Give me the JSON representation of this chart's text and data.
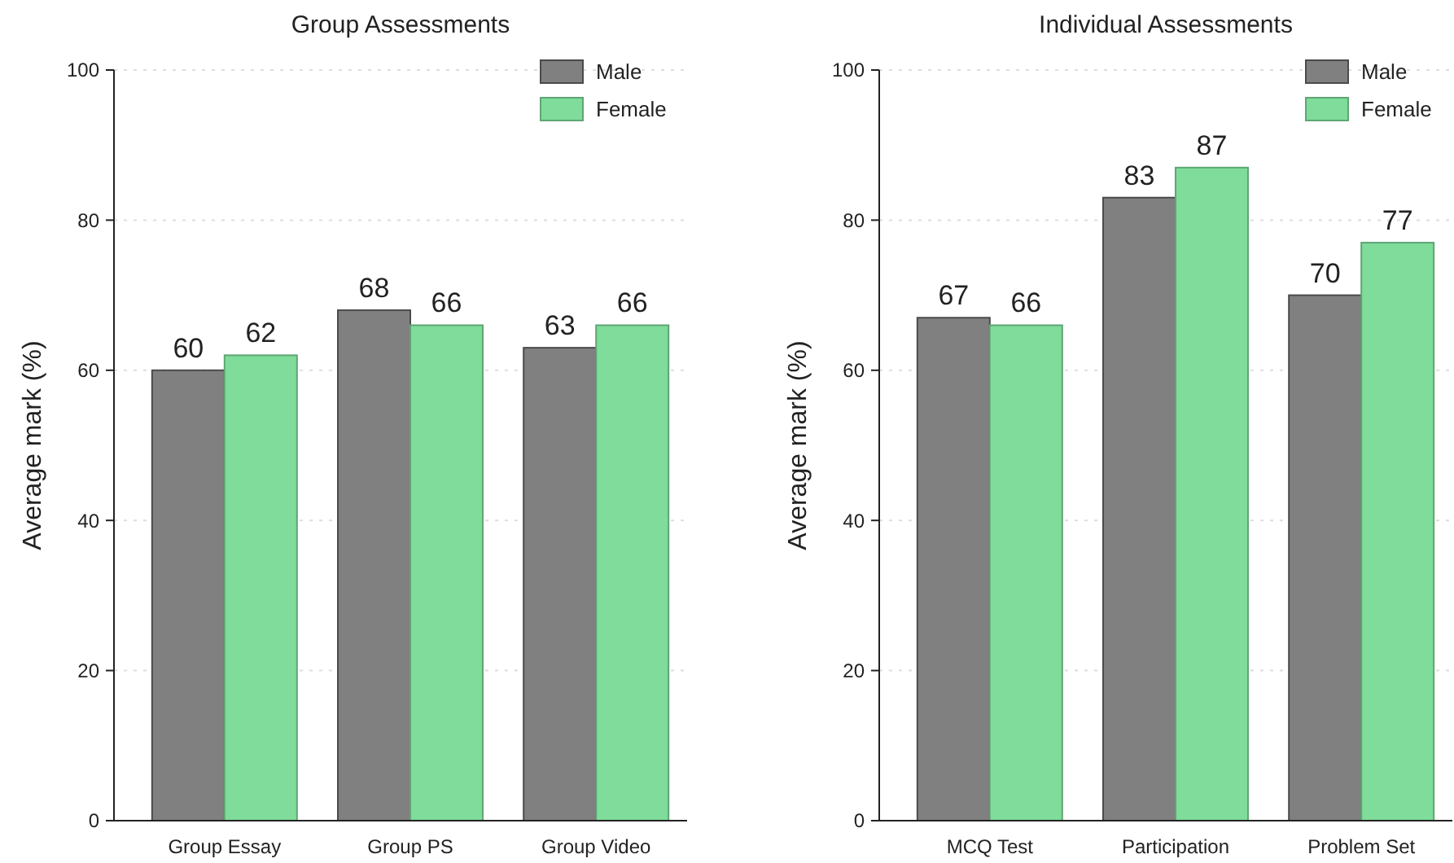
{
  "chart_data": [
    {
      "type": "bar",
      "title": "Group Assessments",
      "ylabel": "Average mark (%)",
      "categories": [
        "Group Essay",
        "Group PS",
        "Group Video"
      ],
      "series": [
        {
          "name": "Male",
          "color": "#808080",
          "values": [
            60,
            68,
            63
          ]
        },
        {
          "name": "Female",
          "color": "#7fdc9a",
          "values": [
            62,
            66,
            66
          ]
        }
      ],
      "ylim": [
        0,
        100
      ],
      "yticks": [
        0,
        20,
        40,
        60,
        80,
        100
      ],
      "grid": "y",
      "legend": "top right",
      "data_labels": true
    },
    {
      "type": "bar",
      "title": "Individual Assessments",
      "ylabel": "Average mark (%)",
      "categories": [
        "MCQ Test",
        "Participation",
        "Problem Set"
      ],
      "series": [
        {
          "name": "Male",
          "color": "#808080",
          "values": [
            67,
            83,
            70
          ]
        },
        {
          "name": "Female",
          "color": "#7fdc9a",
          "values": [
            66,
            87,
            77
          ]
        }
      ],
      "ylim": [
        0,
        100
      ],
      "yticks": [
        0,
        20,
        40,
        60,
        80,
        100
      ],
      "grid": "y",
      "legend": "top right",
      "data_labels": true
    }
  ]
}
